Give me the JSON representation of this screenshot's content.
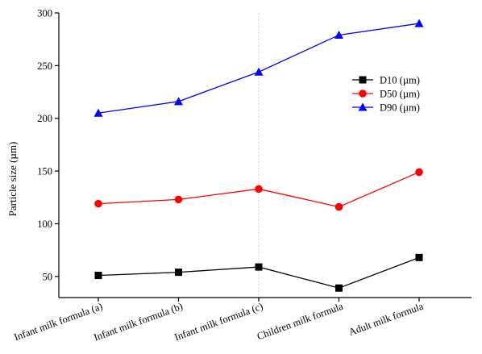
{
  "chart_data": {
    "type": "line",
    "categories": [
      "Infant milk formula (a)",
      "Infant milk  formula (b)",
      "Infant milk  formula (c)",
      "Children milk formula",
      "Adult milk formula"
    ],
    "ylabel": "Particle size (µm)",
    "xlabel": "",
    "ylim": [
      30,
      300
    ],
    "yticks": [
      50,
      100,
      150,
      200,
      250,
      300
    ],
    "grid": false,
    "legend_position": "upper-right",
    "series": [
      {
        "name": "D10 (µm)",
        "color": "#000000",
        "marker": "square",
        "values": [
          51,
          54,
          59,
          39,
          68
        ]
      },
      {
        "name": "D50 (µm)",
        "color": "#ff0000",
        "marker": "circle",
        "values": [
          119,
          123,
          133,
          116,
          149
        ]
      },
      {
        "name": "D90 (µm)",
        "color": "#0000ff",
        "marker": "triangle",
        "values": [
          205,
          216,
          244,
          279,
          290
        ]
      }
    ]
  }
}
